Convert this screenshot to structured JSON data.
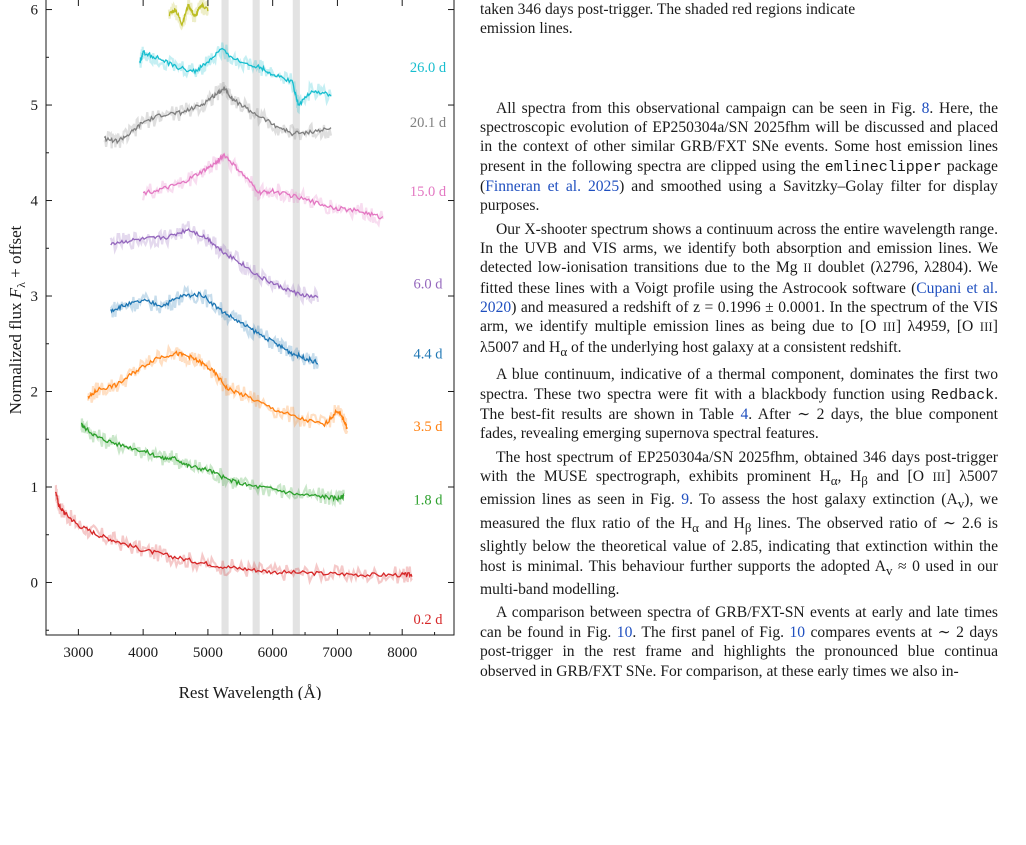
{
  "figure": {
    "ylabel": "Normalized flux F_λ + offset",
    "xlabel": "Rest Wavelength (Å)",
    "chart_data": {
      "type": "line",
      "title": "",
      "xlabel": "Rest Wavelength (Å)",
      "ylabel": "Normalized flux F_λ + offset",
      "xticks": [
        3000,
        4000,
        5000,
        6000,
        7000,
        8000
      ],
      "yticks": [
        0,
        1,
        2,
        3,
        4,
        5,
        6
      ],
      "xlim": [
        2500,
        8800
      ],
      "ylim": [
        -0.55,
        6.1
      ],
      "shaded_bands": [
        {
          "center": 5265,
          "width": 110
        },
        {
          "center": 5745,
          "width": 110
        },
        {
          "center": 6365,
          "width": 110
        }
      ],
      "series": [
        {
          "name": "0.2 d",
          "color": "#d62728",
          "x": [
            2650,
            2700,
            2800,
            3000,
            3300,
            3600,
            4000,
            4400,
            4800,
            5200,
            5600,
            6000,
            6500,
            7000,
            7500,
            8000,
            8150
          ],
          "y": [
            0.95,
            0.8,
            0.72,
            0.6,
            0.5,
            0.43,
            0.34,
            0.28,
            0.22,
            0.17,
            0.14,
            0.11,
            0.1,
            0.09,
            0.08,
            0.08,
            0.08
          ]
        },
        {
          "name": "1.8 d",
          "color": "#2ca02c",
          "x": [
            3050,
            3100,
            3300,
            3600,
            4000,
            4300,
            4500,
            4700,
            5000,
            5300,
            5600,
            6000,
            6400,
            6800,
            7000,
            7100
          ],
          "y": [
            1.66,
            1.62,
            1.52,
            1.45,
            1.38,
            1.3,
            1.3,
            1.22,
            1.18,
            1.08,
            1.02,
            0.98,
            0.92,
            0.9,
            0.88,
            0.9
          ]
        },
        {
          "name": "3.5 d",
          "color": "#ff7f0e",
          "x": [
            3150,
            3300,
            3600,
            3900,
            4200,
            4500,
            4700,
            4900,
            5100,
            5300,
            5600,
            6000,
            6400,
            6800,
            7000,
            7100,
            7150
          ],
          "y": [
            1.93,
            2.02,
            2.07,
            2.22,
            2.35,
            2.4,
            2.37,
            2.3,
            2.2,
            2.03,
            1.95,
            1.82,
            1.72,
            1.65,
            1.8,
            1.7,
            1.62
          ]
        },
        {
          "name": "4.4 d",
          "color": "#1f77b4",
          "x": [
            3500,
            3700,
            4000,
            4300,
            4600,
            4900,
            5200,
            5500,
            5800,
            6100,
            6300,
            6500,
            6700
          ],
          "y": [
            2.85,
            2.9,
            2.95,
            2.9,
            3.0,
            3.02,
            2.85,
            2.72,
            2.6,
            2.48,
            2.4,
            2.35,
            2.3
          ]
        },
        {
          "name": "6.0 d",
          "color": "#9467bd",
          "x": [
            3500,
            3800,
            4100,
            4400,
            4700,
            5000,
            5200,
            5500,
            5800,
            6100,
            6400,
            6700
          ],
          "y": [
            3.55,
            3.58,
            3.6,
            3.62,
            3.7,
            3.6,
            3.48,
            3.35,
            3.2,
            3.1,
            3.02,
            2.98
          ]
        },
        {
          "name": "15.0 d",
          "color": "#e377c2",
          "x": [
            4000,
            4300,
            4600,
            4900,
            5100,
            5250,
            5500,
            5800,
            6000,
            6300,
            6700,
            7000,
            7400,
            7700
          ],
          "y": [
            4.08,
            4.12,
            4.18,
            4.3,
            4.38,
            4.48,
            4.3,
            4.08,
            4.1,
            4.05,
            3.97,
            3.92,
            3.88,
            3.82
          ]
        },
        {
          "name": "20.1 d",
          "color": "#7f7f7f",
          "x": [
            3400,
            3600,
            3800,
            4000,
            4300,
            4600,
            4900,
            5100,
            5250,
            5400,
            5700,
            6000,
            6300,
            6600,
            6900
          ],
          "y": [
            4.65,
            4.62,
            4.7,
            4.82,
            4.9,
            4.92,
            5.0,
            5.1,
            5.18,
            5.05,
            4.92,
            4.8,
            4.7,
            4.72,
            4.75
          ]
        },
        {
          "name": "26.0 d",
          "color": "#17becf",
          "x": [
            3950,
            4000,
            4200,
            4500,
            4800,
            5000,
            5200,
            5500,
            5800,
            6000,
            6300,
            6400,
            6600,
            6900
          ],
          "y": [
            5.45,
            5.55,
            5.5,
            5.4,
            5.35,
            5.45,
            5.58,
            5.45,
            5.4,
            5.32,
            5.25,
            5.0,
            5.15,
            5.1
          ]
        },
        {
          "name": "",
          "color": "#bcbd22",
          "x": [
            4400,
            4500,
            4600,
            4700,
            4800,
            4900,
            5000
          ],
          "y": [
            5.95,
            6.0,
            5.85,
            6.05,
            5.92,
            6.05,
            6.0
          ]
        }
      ]
    },
    "labels": [
      {
        "text": "26.0 d",
        "color": "#17becf",
        "y": 5.4
      },
      {
        "text": "20.1 d",
        "color": "#7f7f7f",
        "y": 4.82
      },
      {
        "text": "15.0 d",
        "color": "#e377c2",
        "y": 4.1
      },
      {
        "text": "6.0 d",
        "color": "#9467bd",
        "y": 3.13
      },
      {
        "text": "4.4 d",
        "color": "#1f77b4",
        "y": 2.4
      },
      {
        "text": "3.5 d",
        "color": "#ff7f0e",
        "y": 1.64
      },
      {
        "text": "1.8 d",
        "color": "#2ca02c",
        "y": 0.87
      },
      {
        "text": "0.2 d",
        "color": "#d62728",
        "y": -0.38
      }
    ]
  },
  "text": {
    "caption_line1": "taken 346 days post-trigger. The shaded red regions indicate",
    "caption_line2": "emission lines.",
    "p1": {
      "a": "All spectra from this observational campaign can be seen in Fig.",
      "fig_ref": "8",
      "b": ". Here, the spectroscopic evolution of EP250304a/SN 2025fhm will be discussed and placed in the context of other similar GRB/FXT SNe events. Some host emission lines present in the following spectra are clipped using the",
      "code": "emlineclipper",
      "c": "package (",
      "cite": "Finneran et al. 2025",
      "d": ") and smoothed using a Savitzky–Golay filter for display purposes."
    },
    "p2": {
      "a": "Our X-shooter spectrum shows a continuum across the entire wavelength range. In the UVB and VIS arms, we identify both absorption and emission lines. We detected low-ionisation transitions due to the Mg",
      "mg_ion": "II",
      "b": "doublet (λ2796, λ2804). We fitted these lines with a Voigt profile using the Astrocook software (",
      "cite": "Cupani et al. 2020",
      "c": ") and measured a redshift of z = 0.1996 ± 0.0001. In the spectrum of the VIS arm, we identify multiple emission lines as being due to [O",
      "o_ion1": "III",
      "d": "] λ4959, [O",
      "o_ion2": "III",
      "e": "] λ5007 and H",
      "h_alpha": "α",
      "f": "of the underlying host galaxy at a consistent redshift."
    },
    "p3": {
      "a": "A blue continuum, indicative of a thermal component, dominates the first two spectra. These two spectra were fit with a blackbody function using",
      "code": "Redback",
      "b": ". The best-fit results are shown in Table",
      "table_ref": "4",
      "c": ". After ∼ 2 days, the blue component fades, revealing emerging supernova spectral features."
    },
    "p4": {
      "a": "The host spectrum of EP250304a/SN 2025fhm, obtained 346 days post-trigger with the MUSE spectrograph, exhibits prominent H",
      "ha": "α",
      "b": ", H",
      "hb": "β",
      "c": "and [O",
      "o_ion": "III",
      "d": "] λ5007 emission lines as seen in Fig.",
      "fig_ref": "9",
      "e": ". To assess the host galaxy extinction (A",
      "av": "v",
      "f": "), we measured the flux ratio of the H",
      "ha2": "α",
      "g": "and H",
      "hb2": "β",
      "h": "lines. The observed ratio of ∼ 2.6 is slightly below the theoretical value of 2.85, indicating that extinction within the host is minimal. This behaviour further supports the adopted A",
      "av2": "v",
      "i": "≈ 0 used in our multi-band modelling."
    },
    "p5": {
      "a": "A comparison between spectra of GRB/FXT-SN events at early and late times can be found in Fig.",
      "fig_ref1": "10",
      "b": ". The first panel of Fig.",
      "fig_ref2": "10",
      "c": "compares events at ∼ 2 days post-trigger in the rest frame and highlights the pronounced blue continua observed in GRB/FXT SNe. For comparison, at these early times we also in-"
    }
  }
}
